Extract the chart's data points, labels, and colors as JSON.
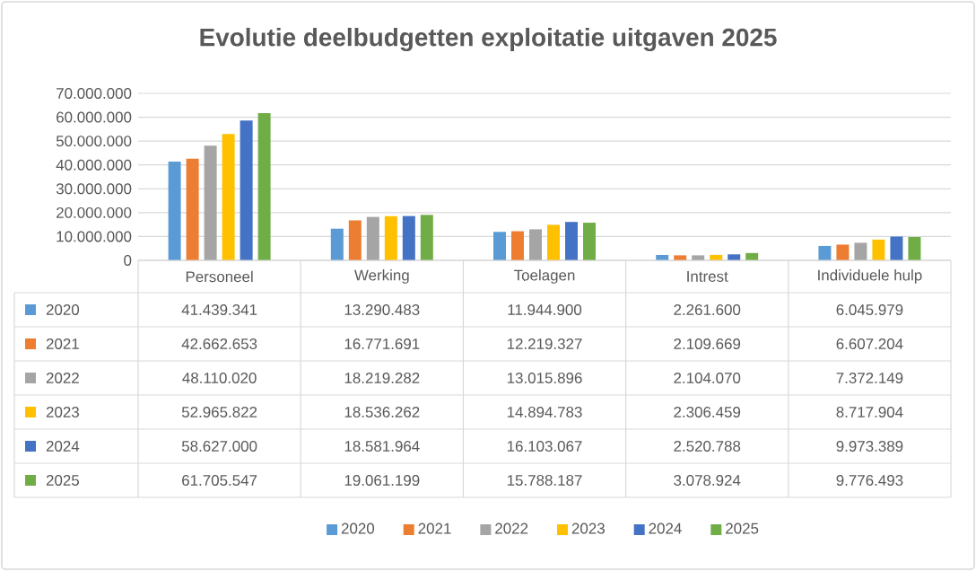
{
  "chart_data": {
    "type": "bar",
    "title": "Evolutie deelbudgetten exploitatie uitgaven 2025",
    "categories": [
      "Personeel",
      "Werking",
      "Toelagen",
      "Intrest",
      "Individuele hulp"
    ],
    "series": [
      {
        "name": "2020",
        "color": "#5b9bd5",
        "values": [
          41439341,
          13290483,
          11944900,
          2261600,
          6045979
        ],
        "value_labels": [
          "41.439.341",
          "13.290.483",
          "11.944.900",
          "2.261.600",
          "6.045.979"
        ]
      },
      {
        "name": "2021",
        "color": "#ed7d31",
        "values": [
          42662653,
          16771691,
          12219327,
          2109669,
          6607204
        ],
        "value_labels": [
          "42.662.653",
          "16.771.691",
          "12.219.327",
          "2.109.669",
          "6.607.204"
        ]
      },
      {
        "name": "2022",
        "color": "#a5a5a5",
        "values": [
          48110020,
          18219282,
          13015896,
          2104070,
          7372149
        ],
        "value_labels": [
          "48.110.020",
          "18.219.282",
          "13.015.896",
          "2.104.070",
          "7.372.149"
        ]
      },
      {
        "name": "2023",
        "color": "#ffc000",
        "values": [
          52965822,
          18536262,
          14894783,
          2306459,
          8717904
        ],
        "value_labels": [
          "52.965.822",
          "18.536.262",
          "14.894.783",
          "2.306.459",
          "8.717.904"
        ]
      },
      {
        "name": "2024",
        "color": "#4472c4",
        "values": [
          58627000,
          18581964,
          16103067,
          2520788,
          9973389
        ],
        "value_labels": [
          "58.627.000",
          "18.581.964",
          "16.103.067",
          "2.520.788",
          "9.973.389"
        ]
      },
      {
        "name": "2025",
        "color": "#70ad47",
        "values": [
          61705547,
          19061199,
          15788187,
          3078924,
          9776493
        ],
        "value_labels": [
          "61.705.547",
          "19.061.199",
          "15.788.187",
          "3.078.924",
          "9.776.493"
        ]
      }
    ],
    "ylim": [
      0,
      70000000
    ],
    "yticks": [
      0,
      {
        "value": 10000000,
        "label": "10.000.000"
      },
      {
        "value": 20000000,
        "label": "20.000.000"
      },
      {
        "value": 30000000,
        "label": "30.000.000"
      },
      {
        "value": 40000000,
        "label": "40.000.000"
      },
      {
        "value": 50000000,
        "label": "50.000.000"
      },
      {
        "value": 60000000,
        "label": "60.000.000"
      },
      {
        "value": 70000000,
        "label": "70.000.000"
      }
    ],
    "grid": "y",
    "legend": "bottom"
  }
}
